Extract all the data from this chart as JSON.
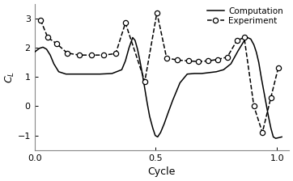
{
  "title": "",
  "xlabel": "Cycle",
  "ylabel": "$C_L$",
  "xlim": [
    0,
    1.05
  ],
  "ylim": [
    -1.5,
    3.5
  ],
  "yticks": [
    -1,
    0,
    1,
    2,
    3
  ],
  "xticks": [
    0,
    0.5,
    1
  ],
  "legend_labels": [
    "Computation",
    "Experiment"
  ],
  "computation_x": [
    0.0,
    0.02,
    0.035,
    0.05,
    0.065,
    0.08,
    0.1,
    0.13,
    0.17,
    0.22,
    0.27,
    0.32,
    0.36,
    0.375,
    0.39,
    0.405,
    0.415,
    0.425,
    0.435,
    0.445,
    0.455,
    0.465,
    0.475,
    0.488,
    0.498,
    0.508,
    0.52,
    0.535,
    0.55,
    0.57,
    0.6,
    0.63,
    0.66,
    0.69,
    0.72,
    0.75,
    0.78,
    0.81,
    0.84,
    0.862,
    0.878,
    0.892,
    0.905,
    0.915,
    0.925,
    0.935,
    0.945,
    0.955,
    0.965,
    0.975,
    0.985,
    0.995,
    1.02
  ],
  "computation_y": [
    1.85,
    1.98,
    2.02,
    1.95,
    1.75,
    1.45,
    1.18,
    1.1,
    1.1,
    1.1,
    1.1,
    1.12,
    1.25,
    1.55,
    2.0,
    2.35,
    2.25,
    1.95,
    1.55,
    1.1,
    0.6,
    0.1,
    -0.35,
    -0.75,
    -1.0,
    -1.05,
    -0.9,
    -0.6,
    -0.25,
    0.2,
    0.8,
    1.1,
    1.12,
    1.12,
    1.15,
    1.18,
    1.25,
    1.45,
    1.9,
    2.2,
    2.35,
    2.3,
    2.1,
    1.85,
    1.5,
    1.0,
    0.55,
    0.1,
    -0.35,
    -0.75,
    -1.05,
    -1.1,
    -1.05
  ],
  "experiment_x": [
    0.025,
    0.055,
    0.09,
    0.135,
    0.185,
    0.235,
    0.285,
    0.335,
    0.375,
    0.455,
    0.505,
    0.545,
    0.59,
    0.635,
    0.675,
    0.715,
    0.755,
    0.795,
    0.835,
    0.865,
    0.905,
    0.94,
    0.975,
    1.005
  ],
  "experiment_y": [
    2.95,
    2.35,
    2.15,
    1.82,
    1.75,
    1.75,
    1.75,
    1.8,
    2.85,
    0.85,
    3.2,
    1.65,
    1.58,
    1.55,
    1.53,
    1.55,
    1.6,
    1.68,
    2.25,
    2.35,
    0.0,
    -0.9,
    0.3,
    1.3
  ],
  "background_color": "#ffffff",
  "line_color": "#000000",
  "line_width": 1.1,
  "marker_size": 4.5,
  "marker_color": "white",
  "marker_edge_width": 0.9
}
